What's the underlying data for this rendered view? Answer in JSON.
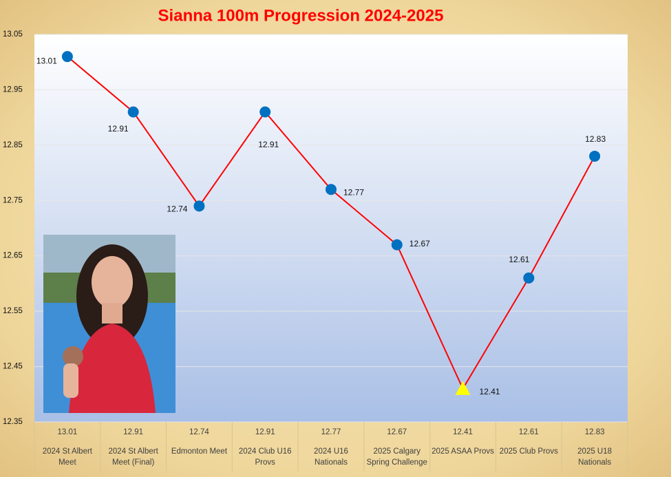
{
  "chart_data": {
    "type": "line",
    "title": "Sianna 100m Progression 2024-2025",
    "categories": [
      "2024 St Albert Meet",
      "2024 St Albert Meet (Final)",
      "Edmonton Meet",
      "2024 Club U16 Provs",
      "2024 U16 Nationals",
      "2025 Calgary Spring Challenge",
      "2025 ASAA Provs",
      "2025 Club Provs",
      "2025 U18 Nationals"
    ],
    "values": [
      13.01,
      12.91,
      12.74,
      12.91,
      12.77,
      12.67,
      12.41,
      12.61,
      12.83
    ],
    "color": "#ff0000",
    "marker_color": "#0070c0",
    "highlight": {
      "index": 6,
      "shape": "triangle",
      "color": "#ffff00"
    },
    "ylim": [
      12.35,
      13.05
    ],
    "yticks": [
      12.35,
      12.45,
      12.55,
      12.65,
      12.75,
      12.85,
      12.95,
      13.05
    ],
    "grid": true
  }
}
